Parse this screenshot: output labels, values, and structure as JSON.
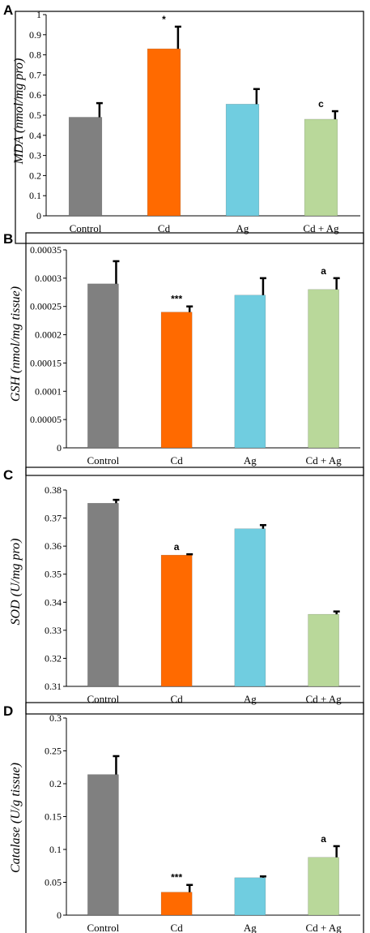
{
  "chart_data": [
    {
      "panel": "A",
      "type": "bar",
      "ylabel": "MDA (nmol/mg pro)",
      "ylim": [
        0,
        1
      ],
      "yticks": [
        "0",
        "0.1",
        "0.2",
        "0.3",
        "0.4",
        "0.5",
        "0.6",
        "0.7",
        "0.8",
        "0.9",
        "1"
      ],
      "categories": [
        "Control",
        "Cd",
        "Ag",
        "Cd + Ag"
      ],
      "values": [
        0.49,
        0.83,
        0.555,
        0.48
      ],
      "errors": [
        0.07,
        0.11,
        0.075,
        0.04
      ],
      "annotations": [
        "",
        "*",
        "",
        "c"
      ],
      "colors": [
        "#808080",
        "#ff6a00",
        "#70cde0",
        "#b9d89a"
      ]
    },
    {
      "panel": "B",
      "type": "bar",
      "ylabel": "GSH (nmol/mg tissue)",
      "ylim": [
        0,
        0.00035
      ],
      "yticks": [
        "0",
        "0.00005",
        "0.0001",
        "0.00015",
        "0.0002",
        "0.00025",
        "0.0003",
        "0.00035"
      ],
      "categories": [
        "Control",
        "Cd",
        "Ag",
        "Cd + Ag"
      ],
      "values": [
        0.00029,
        0.00024,
        0.00027,
        0.00028
      ],
      "errors": [
        4e-05,
        1e-05,
        3e-05,
        2e-05
      ],
      "annotations": [
        "",
        "***",
        "",
        "a"
      ],
      "colors": [
        "#808080",
        "#ff6a00",
        "#70cde0",
        "#b9d89a"
      ]
    },
    {
      "panel": "C",
      "type": "bar",
      "ylabel": "SOD (U/mg pro)",
      "ylim": [
        0.31,
        0.38
      ],
      "yticks": [
        "0.31",
        "0.32",
        "0.33",
        "0.34",
        "0.35",
        "0.36",
        "0.37",
        "0.38"
      ],
      "categories": [
        "Control",
        "Cd",
        "Ag",
        "Cd + Ag"
      ],
      "values": [
        0.3753,
        0.3568,
        0.3662,
        0.3357
      ],
      "errors": [
        0.0012,
        0.0003,
        0.0013,
        0.001
      ],
      "annotations": [
        "",
        "a",
        "",
        ""
      ],
      "colors": [
        "#808080",
        "#ff6a00",
        "#70cde0",
        "#b9d89a"
      ]
    },
    {
      "panel": "D",
      "type": "bar",
      "ylabel": "Catalase (U/g tissue)",
      "ylim": [
        0,
        0.3
      ],
      "yticks": [
        "0",
        "0.05",
        "0.1",
        "0.15",
        "0.2",
        "0.25",
        "0.3"
      ],
      "categories": [
        "Control",
        "Cd",
        "Ag",
        "Cd + Ag"
      ],
      "values": [
        0.214,
        0.035,
        0.057,
        0.088
      ],
      "errors": [
        0.028,
        0.011,
        0.002,
        0.017
      ],
      "annotations": [
        "",
        "***",
        "",
        "a"
      ],
      "colors": [
        "#808080",
        "#ff6a00",
        "#70cde0",
        "#b9d89a"
      ]
    }
  ]
}
